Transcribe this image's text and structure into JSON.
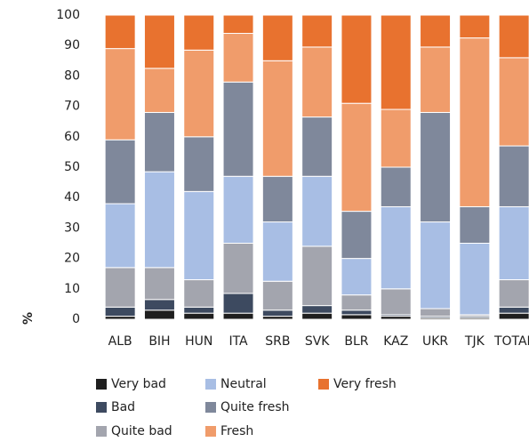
{
  "chart_data": {
    "type": "stacked_bar",
    "y_label": "%",
    "categories": [
      "ALB",
      "BIH",
      "HUN",
      "ITA",
      "SRB",
      "SVK",
      "BLR",
      "KAZ",
      "UKR",
      "TJK",
      "TOTAL"
    ],
    "series": [
      {
        "name": "Very bad",
        "color": "#1f1f1f",
        "values": [
          1,
          3,
          2,
          2,
          1,
          2,
          1.5,
          1,
          0.5,
          0.5,
          2
        ]
      },
      {
        "name": "Bad",
        "color": "#3d4a60",
        "values": [
          3,
          3.5,
          2,
          6.5,
          2,
          2.5,
          1.5,
          0.5,
          0.5,
          0.5,
          2
        ]
      },
      {
        "name": "Quite bad",
        "color": "#a3a5ae",
        "values": [
          13,
          10.5,
          9,
          16.5,
          9.5,
          19.5,
          5,
          8.5,
          2.5,
          0.5,
          9
        ]
      },
      {
        "name": "Neutral",
        "color": "#a8bee4",
        "values": [
          21,
          31.5,
          29,
          22,
          19.5,
          23,
          12,
          27,
          28.5,
          23.5,
          24
        ]
      },
      {
        "name": "Quite fresh",
        "color": "#7f889b",
        "values": [
          21,
          19.5,
          18,
          31,
          15,
          19.5,
          15.5,
          13,
          36,
          12,
          20
        ]
      },
      {
        "name": "Fresh",
        "color": "#f09c6b",
        "values": [
          30,
          14.5,
          28.5,
          16,
          38,
          23,
          35.5,
          19,
          21.5,
          55.5,
          29
        ]
      },
      {
        "name": "Very fresh",
        "color": "#e8722f",
        "values": [
          11,
          17.5,
          11.5,
          6,
          15,
          10.5,
          29,
          31,
          10.5,
          7.5,
          14
        ]
      }
    ],
    "ylim": [
      0,
      100
    ],
    "yticks": [
      0,
      10,
      20,
      30,
      40,
      50,
      60,
      70,
      80,
      90,
      100
    ],
    "grid": false
  }
}
